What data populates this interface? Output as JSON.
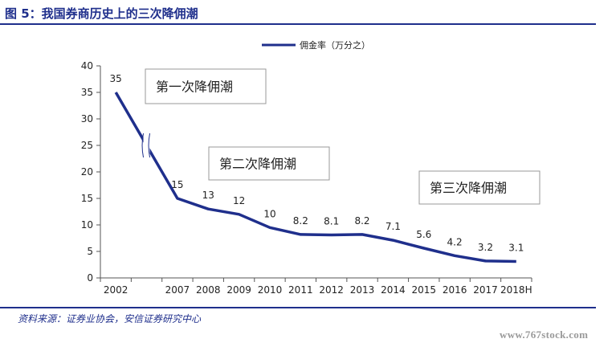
{
  "figure_title": "图 5：我国券商历史上的三次降佣潮",
  "source_note": "资料来源：证券业协会，安信证券研究中心",
  "watermark": "www.767stock.com",
  "colors": {
    "accent": "#1f2f8c",
    "line": "#1f2f8c",
    "box_border": "#999999"
  },
  "chart_data": {
    "type": "line",
    "title": "",
    "xlabel": "",
    "ylabel": "",
    "ylim": [
      0,
      40
    ],
    "yticks": [
      0,
      5,
      10,
      15,
      20,
      25,
      30,
      35,
      40
    ],
    "grid": false,
    "legend_position": "top-center",
    "categories": [
      "2002",
      "2007",
      "2008",
      "2009",
      "2010",
      "2011",
      "2012",
      "2013",
      "2014",
      "2015",
      "2016",
      "2017",
      "2018H"
    ],
    "axis_break_between": [
      "2002",
      "2007"
    ],
    "series": [
      {
        "name": "佣金率（万分之）",
        "values": [
          35,
          15,
          13,
          12,
          9.5,
          8.2,
          8.1,
          8.2,
          7.1,
          5.6,
          4.2,
          3.2,
          3.1
        ],
        "data_labels": [
          "35",
          "15",
          "13",
          "12",
          "10",
          "8.2",
          "8.1",
          "8.2",
          "7.1",
          "5.6",
          "4.2",
          "3.2",
          "3.1"
        ]
      }
    ],
    "annotations": [
      "第一次降佣潮",
      "第二次降佣潮",
      "第三次降佣潮"
    ]
  }
}
